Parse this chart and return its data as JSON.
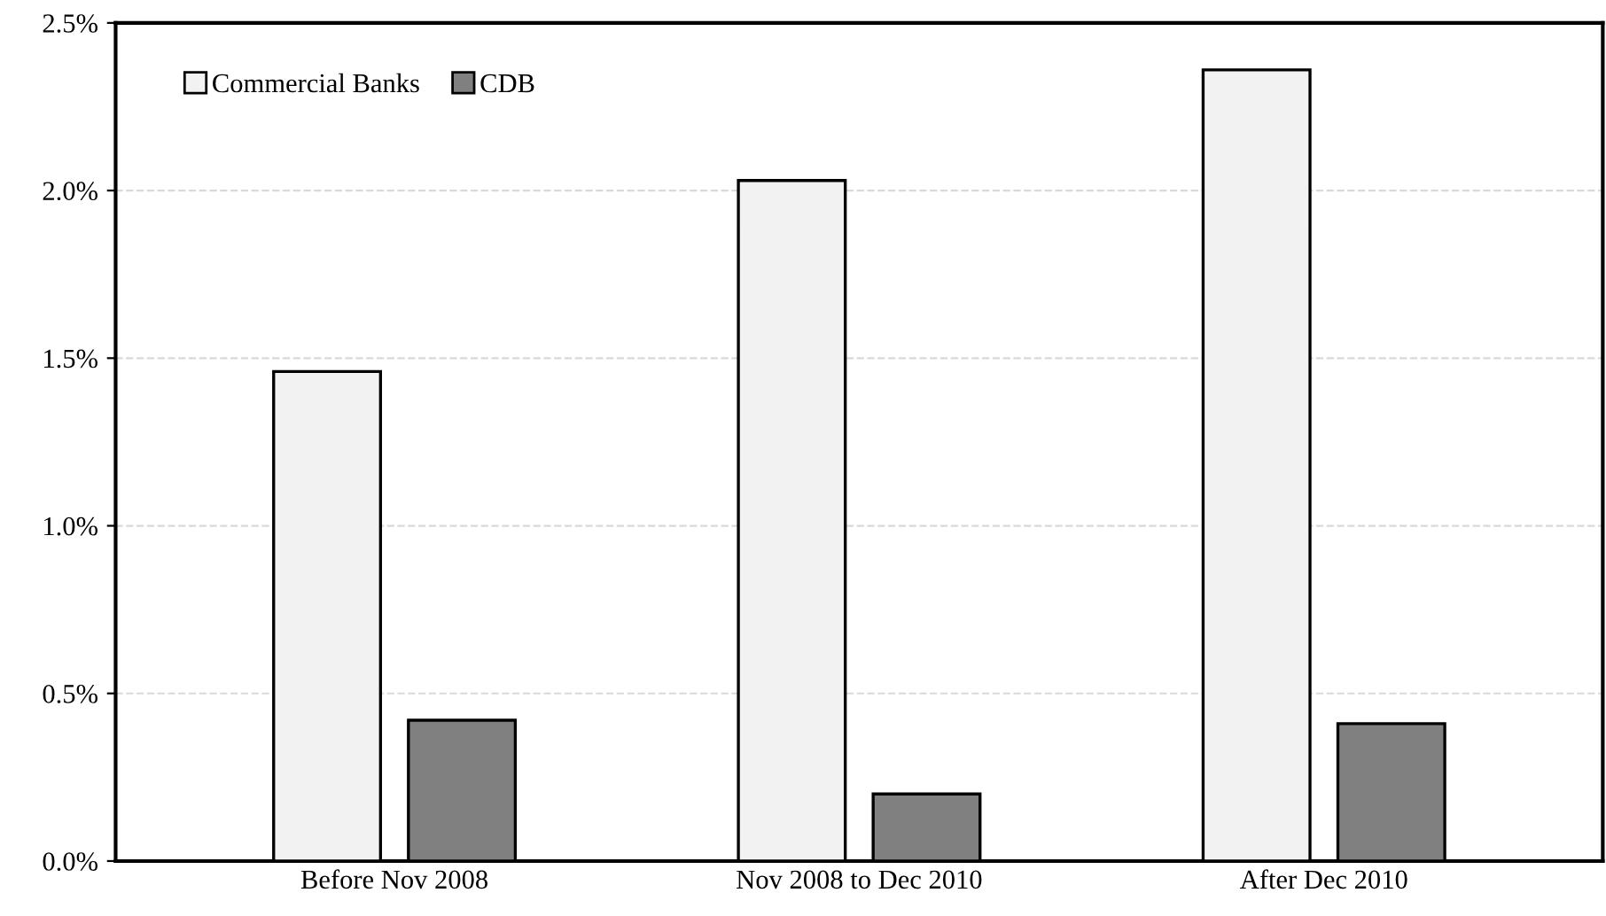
{
  "chart_data": {
    "type": "bar",
    "categories": [
      "Before Nov 2008",
      "Nov 2008 to Dec 2010",
      "After Dec 2010"
    ],
    "series": [
      {
        "name": "Commercial Banks",
        "color": "#f2f2f2",
        "values": [
          1.46,
          2.03,
          2.36
        ]
      },
      {
        "name": "CDB",
        "color": "#808080",
        "values": [
          0.42,
          0.2,
          0.41
        ]
      }
    ],
    "ylim": [
      0,
      2.5
    ],
    "yticks": [
      {
        "value": 0,
        "label": "0.0%"
      },
      {
        "value": 0.5,
        "label": "0.5%"
      },
      {
        "value": 1.0,
        "label": "1.0%"
      },
      {
        "value": 1.5,
        "label": "1.5%"
      },
      {
        "value": 2.0,
        "label": "2.0%"
      },
      {
        "value": 2.5,
        "label": "2.5%"
      }
    ],
    "grid": "y",
    "legend": "top left"
  }
}
